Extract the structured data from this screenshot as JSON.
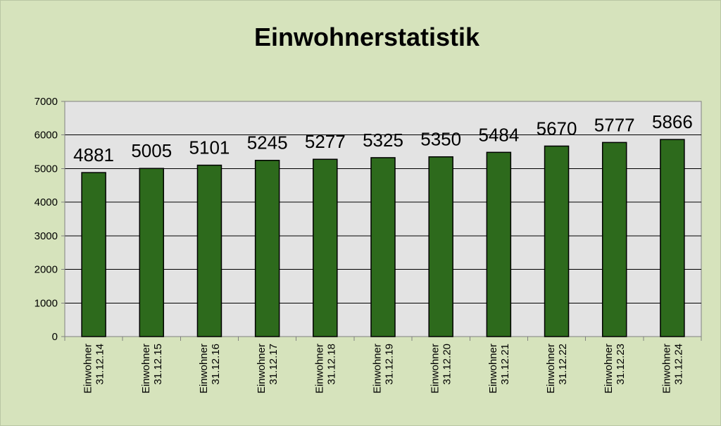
{
  "chart_data": {
    "type": "bar",
    "title": "Einwohnerstatistik",
    "xlabel": "",
    "ylabel": "",
    "categories": [
      [
        "Einwohner",
        "31.12.14"
      ],
      [
        "Einwohner",
        "31.12.15"
      ],
      [
        "Einwohner",
        "31.12.16"
      ],
      [
        "Einwohner",
        "31.12.17"
      ],
      [
        "Einwohner",
        "31.12.18"
      ],
      [
        "Einwohner",
        "31.12.19"
      ],
      [
        "Einwohner",
        "31.12.20"
      ],
      [
        "Einwohner",
        "31.12.21"
      ],
      [
        "Einwohner",
        "31.12.22"
      ],
      [
        "Einwohner",
        "31.12.23"
      ],
      [
        "Einwohner",
        "31.12.24"
      ]
    ],
    "values": [
      4881,
      5005,
      5101,
      5245,
      5277,
      5325,
      5350,
      5484,
      5670,
      5777,
      5866
    ],
    "data_labels": [
      "4881",
      "5005",
      "5101",
      "5245",
      "5277",
      "5325",
      "5350",
      "5484",
      "5670",
      "5777",
      "5866"
    ],
    "ylim": [
      0,
      7000
    ],
    "y_ticks": [
      0,
      1000,
      2000,
      3000,
      4000,
      5000,
      6000,
      7000
    ],
    "y_tick_labels": [
      "0",
      "1000",
      "2000",
      "3000",
      "4000",
      "5000",
      "6000",
      "7000"
    ],
    "grid": true,
    "legend": "none",
    "colors": {
      "page_background": "#d6e3bc",
      "plot_background": "#e3e3e3",
      "bar_fill": "#2d6a1c",
      "bar_stroke": "#000000",
      "grid": "#000000",
      "axis": "#808080"
    }
  }
}
